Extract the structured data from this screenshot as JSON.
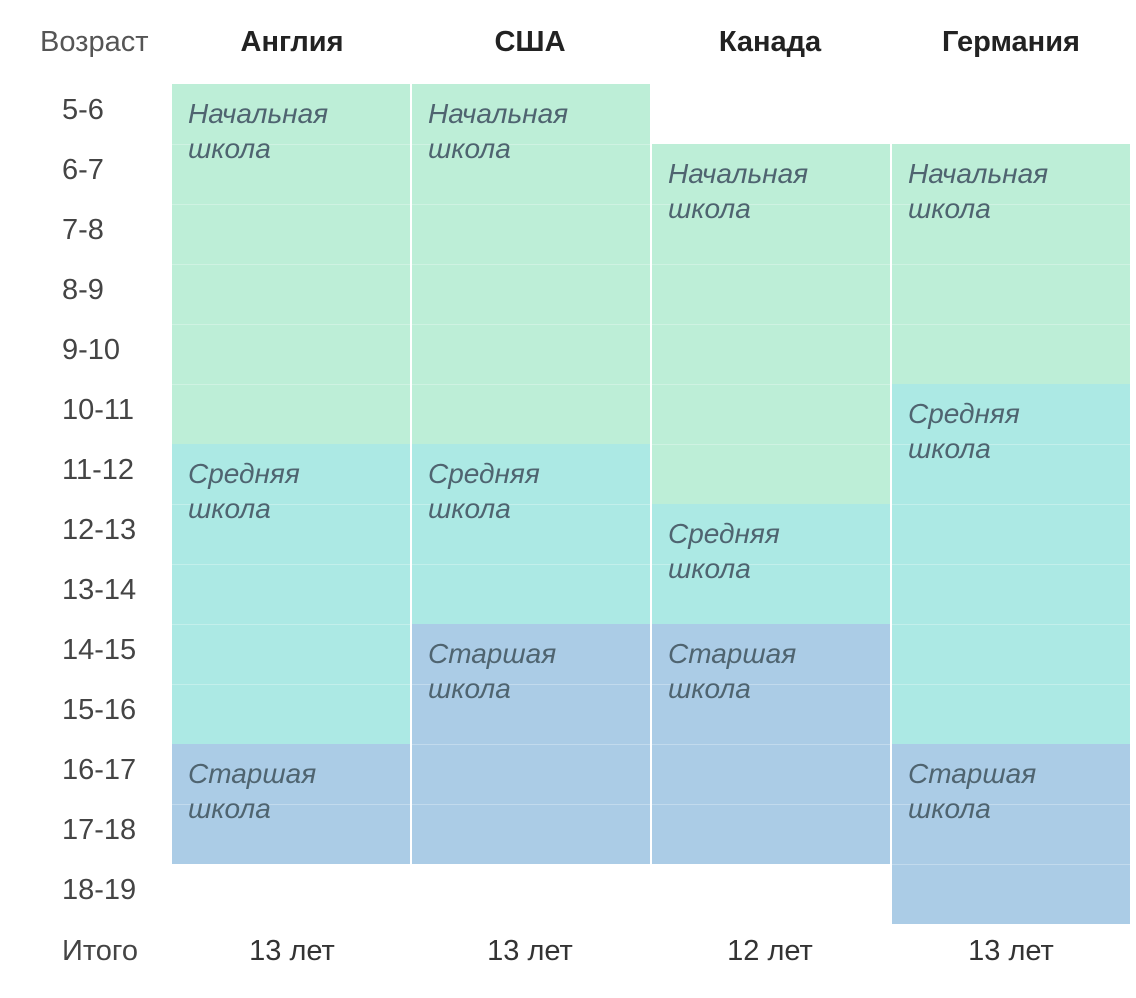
{
  "header": {
    "age_label": "Возраст"
  },
  "countries": [
    {
      "name": "Англия",
      "total": "13 лет",
      "stages": [
        {
          "label": "Начальная\nшкола",
          "from": 0,
          "to": 6,
          "kind": "primary"
        },
        {
          "label": "Средняя\nшкола",
          "from": 6,
          "to": 11,
          "kind": "middle"
        },
        {
          "label": "Старшая\nшкола",
          "from": 11,
          "to": 13,
          "kind": "high"
        }
      ]
    },
    {
      "name": "США",
      "total": "13 лет",
      "stages": [
        {
          "label": "Начальная\nшкола",
          "from": 0,
          "to": 6,
          "kind": "primary"
        },
        {
          "label": "Средняя\nшкола",
          "from": 6,
          "to": 9,
          "kind": "middle"
        },
        {
          "label": "Старшая\nшкола",
          "from": 9,
          "to": 13,
          "kind": "high"
        }
      ]
    },
    {
      "name": "Канада",
      "total": "12 лет",
      "stages": [
        {
          "label": "Начальная\nшкола",
          "from": 1,
          "to": 7,
          "kind": "primary"
        },
        {
          "label": "Средняя\nшкола",
          "from": 7,
          "to": 9,
          "kind": "middle"
        },
        {
          "label": "Старшая\nшкола",
          "from": 9,
          "to": 13,
          "kind": "high"
        }
      ]
    },
    {
      "name": "Германия",
      "total": "13 лет",
      "stages": [
        {
          "label": "Начальная\nшкола",
          "from": 1,
          "to": 5,
          "kind": "primary"
        },
        {
          "label": "Средняя\nшкола",
          "from": 5,
          "to": 11,
          "kind": "middle"
        },
        {
          "label": "Старшая\nшкола",
          "from": 11,
          "to": 14,
          "kind": "high"
        }
      ]
    }
  ],
  "ages": [
    "5-6",
    "6-7",
    "7-8",
    "8-9",
    "9-10",
    "10-11",
    "11-12",
    "12-13",
    "13-14",
    "14-15",
    "15-16",
    "16-17",
    "17-18",
    "18-19"
  ],
  "total_label": "Итого",
  "colors": {
    "primary": "#bdeed7",
    "middle": "#ace9e4",
    "high": "#abcce6"
  }
}
